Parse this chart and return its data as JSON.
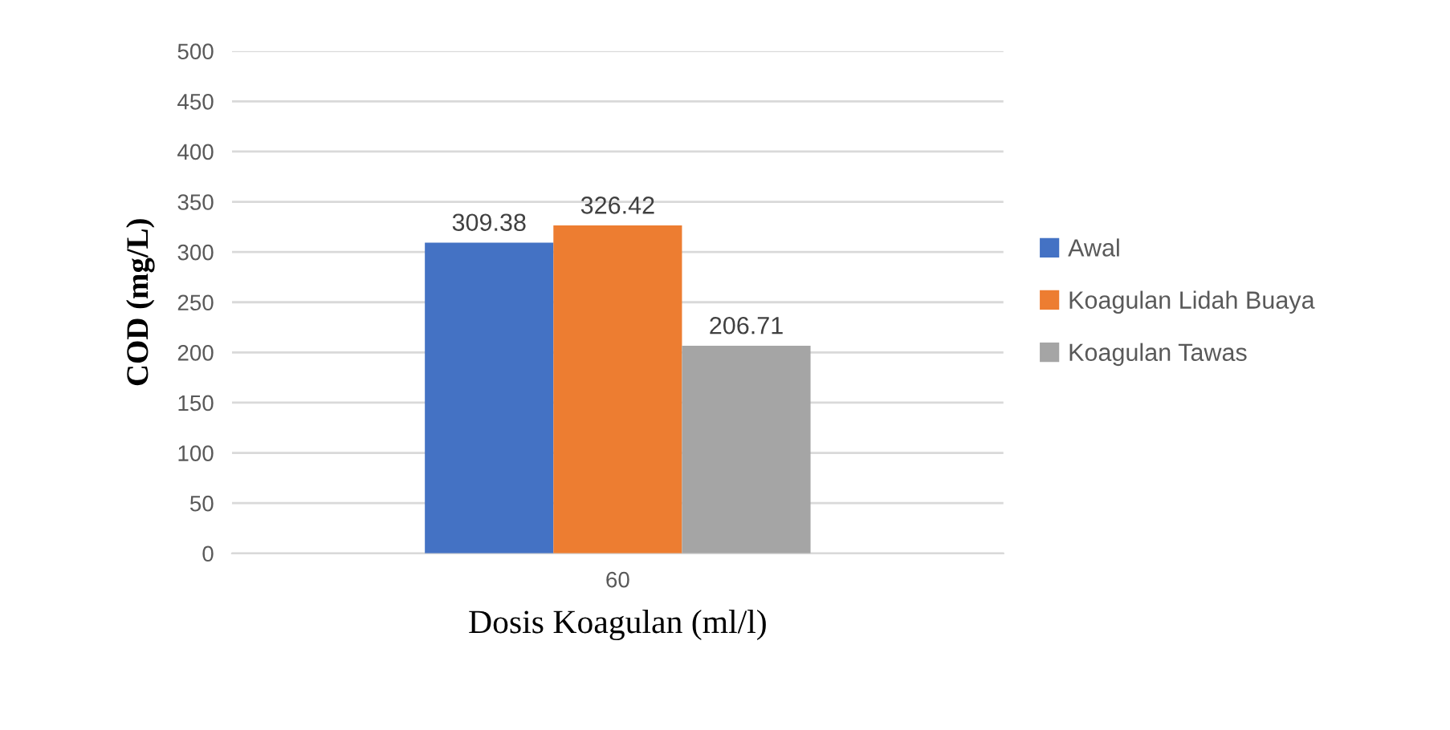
{
  "chart_data": {
    "type": "bar",
    "xlabel": "Dosis Koagulan (ml/l)",
    "ylabel": "COD (mg/L)",
    "categories": [
      "60"
    ],
    "series": [
      {
        "name": "Awal",
        "color": "#4472c4",
        "values": [
          309.38
        ]
      },
      {
        "name": "Koagulan Lidah Buaya",
        "color": "#ed7d31",
        "values": [
          326.42
        ]
      },
      {
        "name": "Koagulan Tawas",
        "color": "#a5a5a5",
        "values": [
          206.71
        ]
      }
    ],
    "ylim": [
      0,
      500
    ],
    "yticks": [
      0,
      50,
      100,
      150,
      200,
      250,
      300,
      350,
      400,
      450,
      500
    ],
    "grid": "y",
    "legend": "right",
    "data_labels": true
  }
}
